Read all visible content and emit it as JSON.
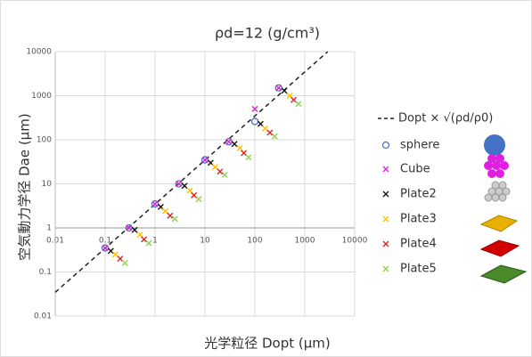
{
  "chart_data": {
    "type": "scatter",
    "title": "ρd=12 (g/cm³)",
    "x_label": "光学粒径 Dopt (μm)",
    "y_label": "空気動力学径 Dae (μm)",
    "log_x": true,
    "log_y": true,
    "grid": true,
    "xlim": [
      0.01,
      10000
    ],
    "ylim": [
      0.01,
      10000
    ],
    "xticks": [
      0.01,
      0.1,
      1,
      10,
      100,
      1000,
      10000
    ],
    "yticks": [
      0.01,
      0.1,
      1,
      10,
      100,
      1000,
      10000
    ],
    "series": [
      {
        "name": "Dopt × √(ρd/ρ0)",
        "marker": "line",
        "color": "#222222",
        "x": [
          0.01,
          2890
        ],
        "values": [
          0.0346,
          10000
        ]
      },
      {
        "name": "sphere",
        "marker": "o",
        "color": "#4472c4",
        "x": [
          0.1,
          0.3,
          1,
          3,
          10,
          30,
          100,
          300
        ],
        "values": [
          0.35,
          1,
          3.5,
          10,
          35,
          90,
          260,
          1500
        ]
      },
      {
        "name": "Cube",
        "marker": "x",
        "color": "#e020e0",
        "x": [
          0.1,
          0.3,
          1,
          3,
          10,
          30,
          100,
          300
        ],
        "values": [
          0.35,
          1,
          3.5,
          10,
          35,
          90,
          500,
          1500
        ]
      },
      {
        "name": "Plate2",
        "marker": "x",
        "color": "#111111",
        "x": [
          0.13,
          0.39,
          1.3,
          3.9,
          13,
          39,
          130,
          390
        ],
        "values": [
          0.3,
          0.9,
          3,
          9,
          30,
          80,
          230,
          1300
        ]
      },
      {
        "name": "Plate3",
        "marker": "x",
        "color": "#ffc000",
        "x": [
          0.16,
          0.5,
          1.6,
          5,
          16,
          50,
          160,
          500
        ],
        "values": [
          0.25,
          0.7,
          2.4,
          7,
          24,
          65,
          180,
          1000
        ]
      },
      {
        "name": "Plate4",
        "marker": "x",
        "color": "#e02020",
        "x": [
          0.2,
          0.6,
          2,
          6,
          20,
          60,
          200,
          600
        ],
        "values": [
          0.2,
          0.55,
          1.9,
          5.5,
          19,
          50,
          145,
          800
        ]
      },
      {
        "name": "Plate5",
        "marker": "x",
        "color": "#8fd14f",
        "x": [
          0.25,
          0.75,
          2.5,
          7.5,
          25,
          75,
          250,
          750
        ],
        "values": [
          0.16,
          0.45,
          1.6,
          4.5,
          16,
          40,
          120,
          650
        ]
      }
    ]
  }
}
